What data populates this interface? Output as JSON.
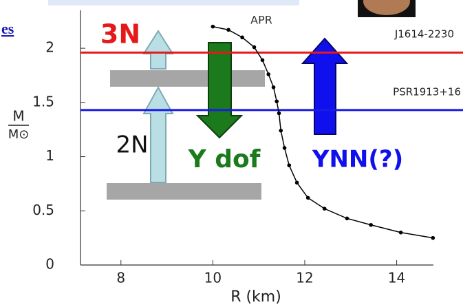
{
  "chart_data": {
    "type": "line",
    "x_label": "R (km)",
    "ylabel_num": "M",
    "ylabel_den": "M⊙",
    "series": [
      {
        "name": "APR",
        "color": "#000000",
        "x": [
          10.0,
          10.34,
          10.64,
          10.9,
          11.08,
          11.21,
          11.32,
          11.39,
          11.44,
          11.48,
          11.56,
          11.66,
          11.83,
          12.07,
          12.43,
          12.92,
          13.44,
          14.09,
          14.79
        ],
        "values": [
          2.2,
          2.17,
          2.1,
          2.01,
          1.89,
          1.76,
          1.64,
          1.51,
          1.4,
          1.24,
          1.08,
          0.92,
          0.76,
          0.62,
          0.52,
          0.43,
          0.37,
          0.3,
          0.25
        ]
      }
    ],
    "xlim": [
      7.12,
      14.8
    ],
    "ylim": [
      0,
      2.35
    ],
    "xticks": [
      8,
      10,
      12,
      14
    ],
    "yticks": [
      0,
      0.5,
      1,
      1.5,
      2
    ],
    "reference_lines": [
      {
        "value": 1.96,
        "color": "#e51919",
        "label": "J1614-2230"
      },
      {
        "value": 1.43,
        "color": "#1a1ae6",
        "label": "PSR1913+16"
      }
    ],
    "annotations": [
      "3N",
      "2N",
      "Y dof",
      "YNN(?)",
      "es"
    ]
  }
}
